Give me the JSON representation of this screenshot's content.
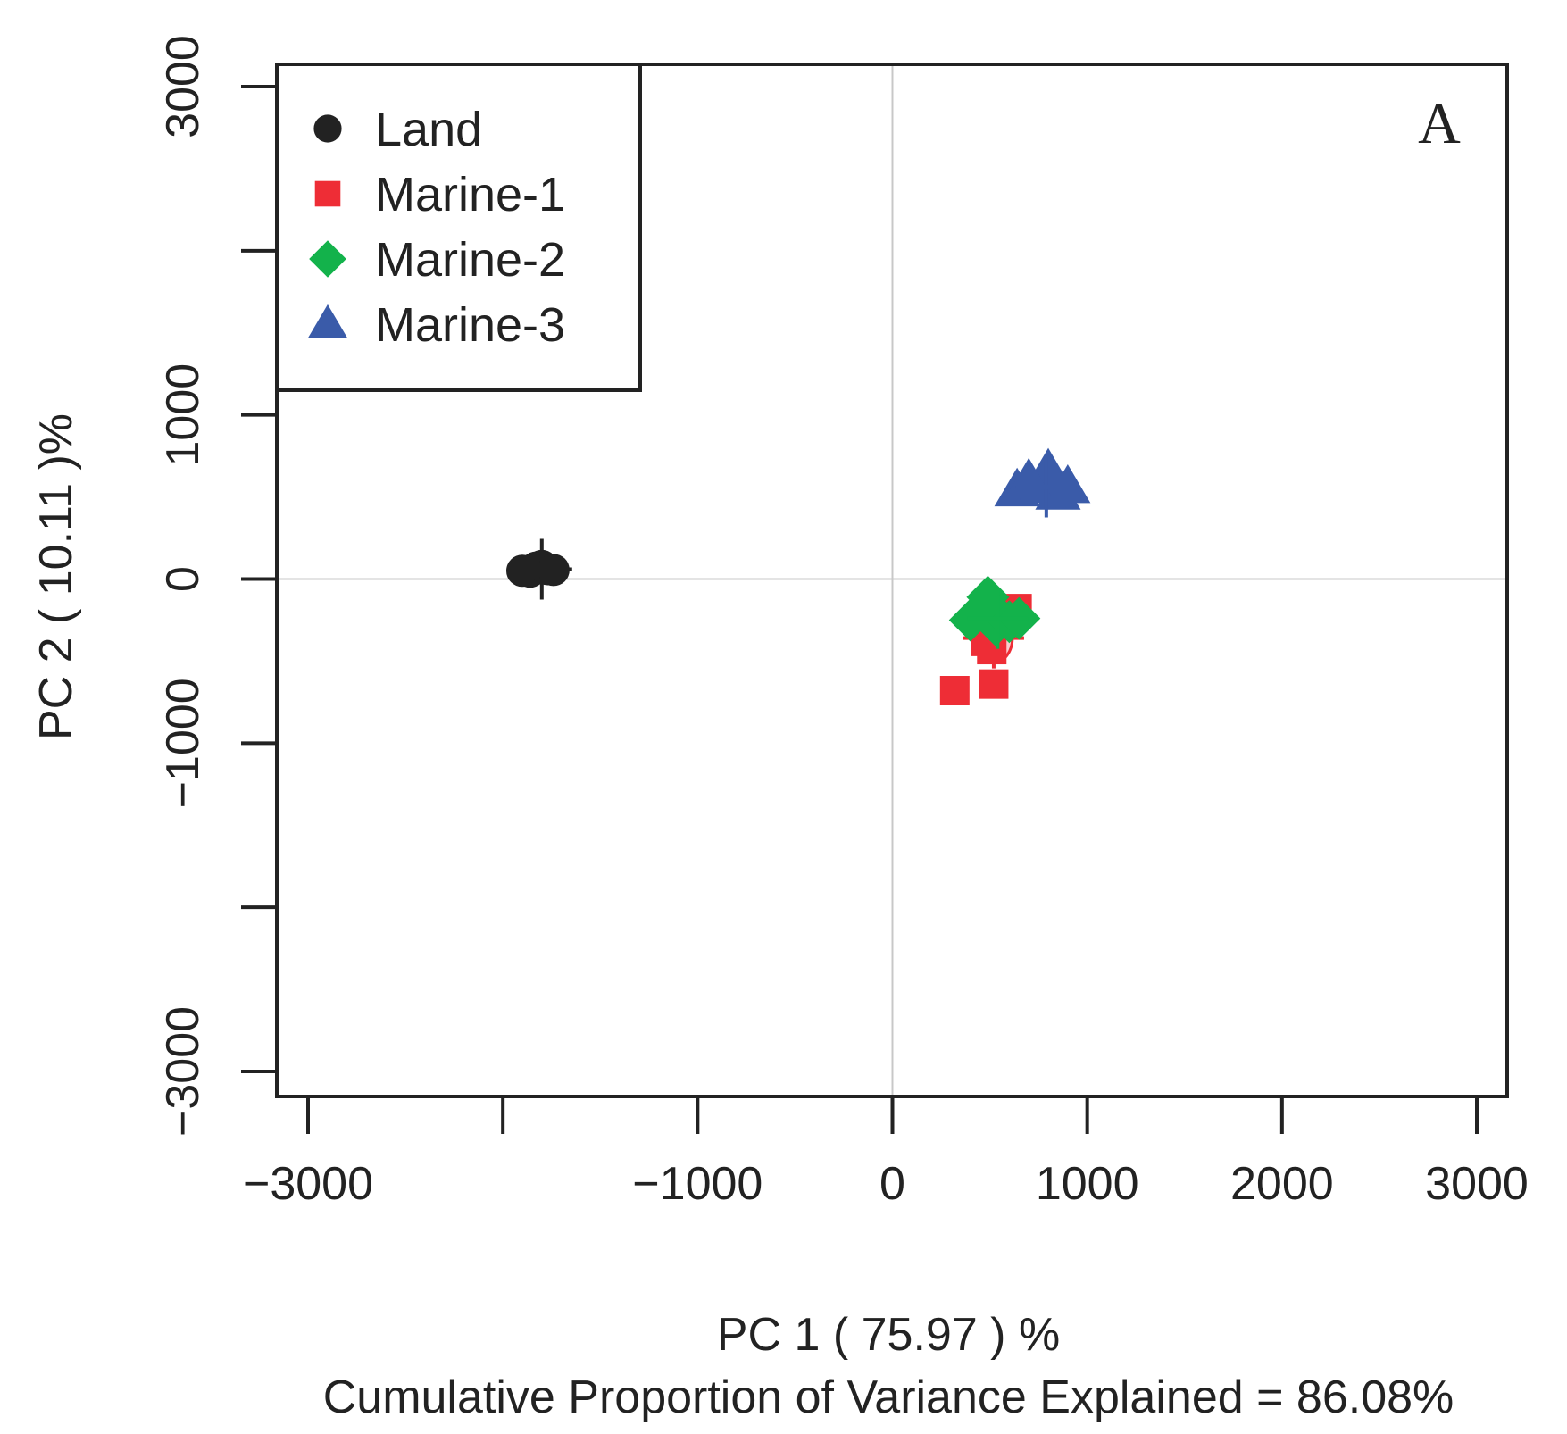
{
  "chart_data": {
    "type": "scatter",
    "panel_label": "A",
    "xlabel": "PC 1  ( 75.97 ) %",
    "ylabel": "PC 2  ( 10.11 )%",
    "subtitle": "Cumulative Proportion of Variance Explained = 86.08%",
    "xlim": [
      -3000,
      3000
    ],
    "ylim": [
      -3000,
      3000
    ],
    "x_ticks": [
      -3000,
      -2000,
      -1000,
      0,
      1000,
      2000,
      3000
    ],
    "x_tick_labels": [
      "−3000",
      "",
      "−1000",
      "0",
      "1000",
      "2000",
      "3000"
    ],
    "y_ticks": [
      -3000,
      -2000,
      -1000,
      0,
      1000,
      2000,
      3000
    ],
    "y_tick_labels": [
      "−3000",
      "",
      "−1000",
      "0",
      "1000",
      "",
      "3000"
    ],
    "reference_lines": {
      "x": 0,
      "y": 0
    },
    "legend_position": "top-left",
    "series": [
      {
        "name": "Land",
        "color": "#222222",
        "marker": "circle",
        "points": [
          [
            -1900,
            50
          ],
          [
            -1860,
            45
          ],
          [
            -1830,
            70
          ],
          [
            -1800,
            80
          ],
          [
            -1770,
            60
          ],
          [
            -1740,
            55
          ]
        ],
        "center": [
          -1800,
          60
        ]
      },
      {
        "name": "Marine-1",
        "color": "#ee2d36",
        "marker": "square",
        "points": [
          [
            320,
            -680
          ],
          [
            520,
            -640
          ],
          [
            560,
            -200
          ],
          [
            640,
            -180
          ],
          [
            480,
            -380
          ],
          [
            510,
            -430
          ]
        ],
        "center": [
          520,
          -360
        ]
      },
      {
        "name": "Marine-2",
        "color": "#13b24b",
        "marker": "diamond",
        "points": [
          [
            400,
            -250
          ],
          [
            490,
            -110
          ],
          [
            530,
            -280
          ],
          [
            550,
            -230
          ],
          [
            600,
            -260
          ],
          [
            650,
            -240
          ]
        ],
        "center": [
          540,
          -240
        ]
      },
      {
        "name": "Marine-3",
        "color": "#3a5ba9",
        "marker": "triangle",
        "points": [
          [
            640,
            540
          ],
          [
            760,
            560
          ],
          [
            800,
            660
          ],
          [
            900,
            560
          ],
          [
            850,
            520
          ],
          [
            700,
            600
          ]
        ],
        "center": [
          790,
          560
        ]
      }
    ]
  }
}
